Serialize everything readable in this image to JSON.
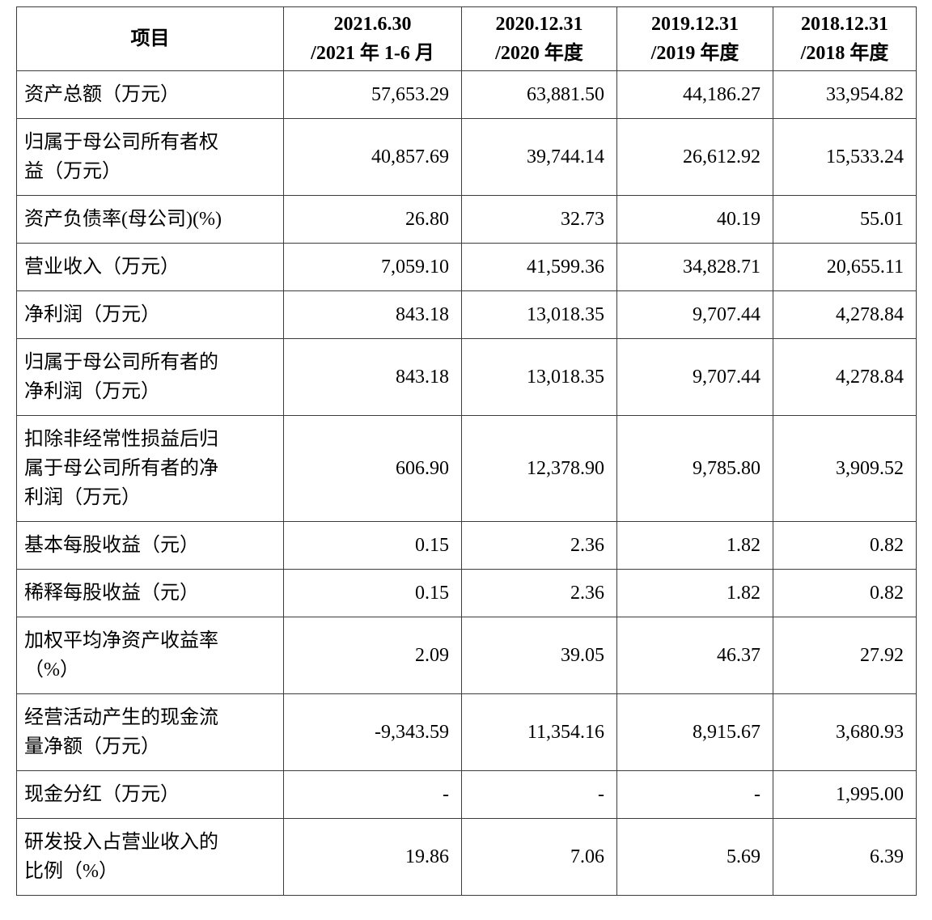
{
  "table": {
    "header": {
      "item_label": "项目",
      "periods": [
        {
          "line1": "2021.6.30",
          "line2": "/2021 年 1-6 月"
        },
        {
          "line1": "2020.12.31",
          "line2": "/2020 年度"
        },
        {
          "line1": "2019.12.31",
          "line2": "/2019 年度"
        },
        {
          "line1": "2018.12.31",
          "line2": "/2018 年度"
        }
      ]
    },
    "rows": [
      {
        "label": "资产总额（万元）",
        "values": [
          "57,653.29",
          "63,881.50",
          "44,186.27",
          "33,954.82"
        ]
      },
      {
        "label": "归属于母公司所有者权\n益（万元）",
        "values": [
          "40,857.69",
          "39,744.14",
          "26,612.92",
          "15,533.24"
        ]
      },
      {
        "label": "资产负债率(母公司)(%)",
        "values": [
          "26.80",
          "32.73",
          "40.19",
          "55.01"
        ]
      },
      {
        "label": "营业收入（万元）",
        "values": [
          "7,059.10",
          "41,599.36",
          "34,828.71",
          "20,655.11"
        ]
      },
      {
        "label": "净利润（万元）",
        "values": [
          "843.18",
          "13,018.35",
          "9,707.44",
          "4,278.84"
        ]
      },
      {
        "label": "归属于母公司所有者的\n净利润（万元）",
        "values": [
          "843.18",
          "13,018.35",
          "9,707.44",
          "4,278.84"
        ]
      },
      {
        "label": "扣除非经常性损益后归\n属于母公司所有者的净\n利润（万元）",
        "values": [
          "606.90",
          "12,378.90",
          "9,785.80",
          "3,909.52"
        ]
      },
      {
        "label": "基本每股收益（元）",
        "values": [
          "0.15",
          "2.36",
          "1.82",
          "0.82"
        ]
      },
      {
        "label": "稀释每股收益（元）",
        "values": [
          "0.15",
          "2.36",
          "1.82",
          "0.82"
        ]
      },
      {
        "label": "加权平均净资产收益率\n（%）",
        "values": [
          "2.09",
          "39.05",
          "46.37",
          "27.92"
        ]
      },
      {
        "label": "经营活动产生的现金流\n量净额（万元）",
        "values": [
          "-9,343.59",
          "11,354.16",
          "8,915.67",
          "3,680.93"
        ]
      },
      {
        "label": "现金分红（万元）",
        "values": [
          "-",
          "-",
          "-",
          "1,995.00"
        ]
      },
      {
        "label": "研发投入占营业收入的\n比例（%）",
        "values": [
          "19.86",
          "7.06",
          "5.69",
          "6.39"
        ]
      }
    ]
  }
}
